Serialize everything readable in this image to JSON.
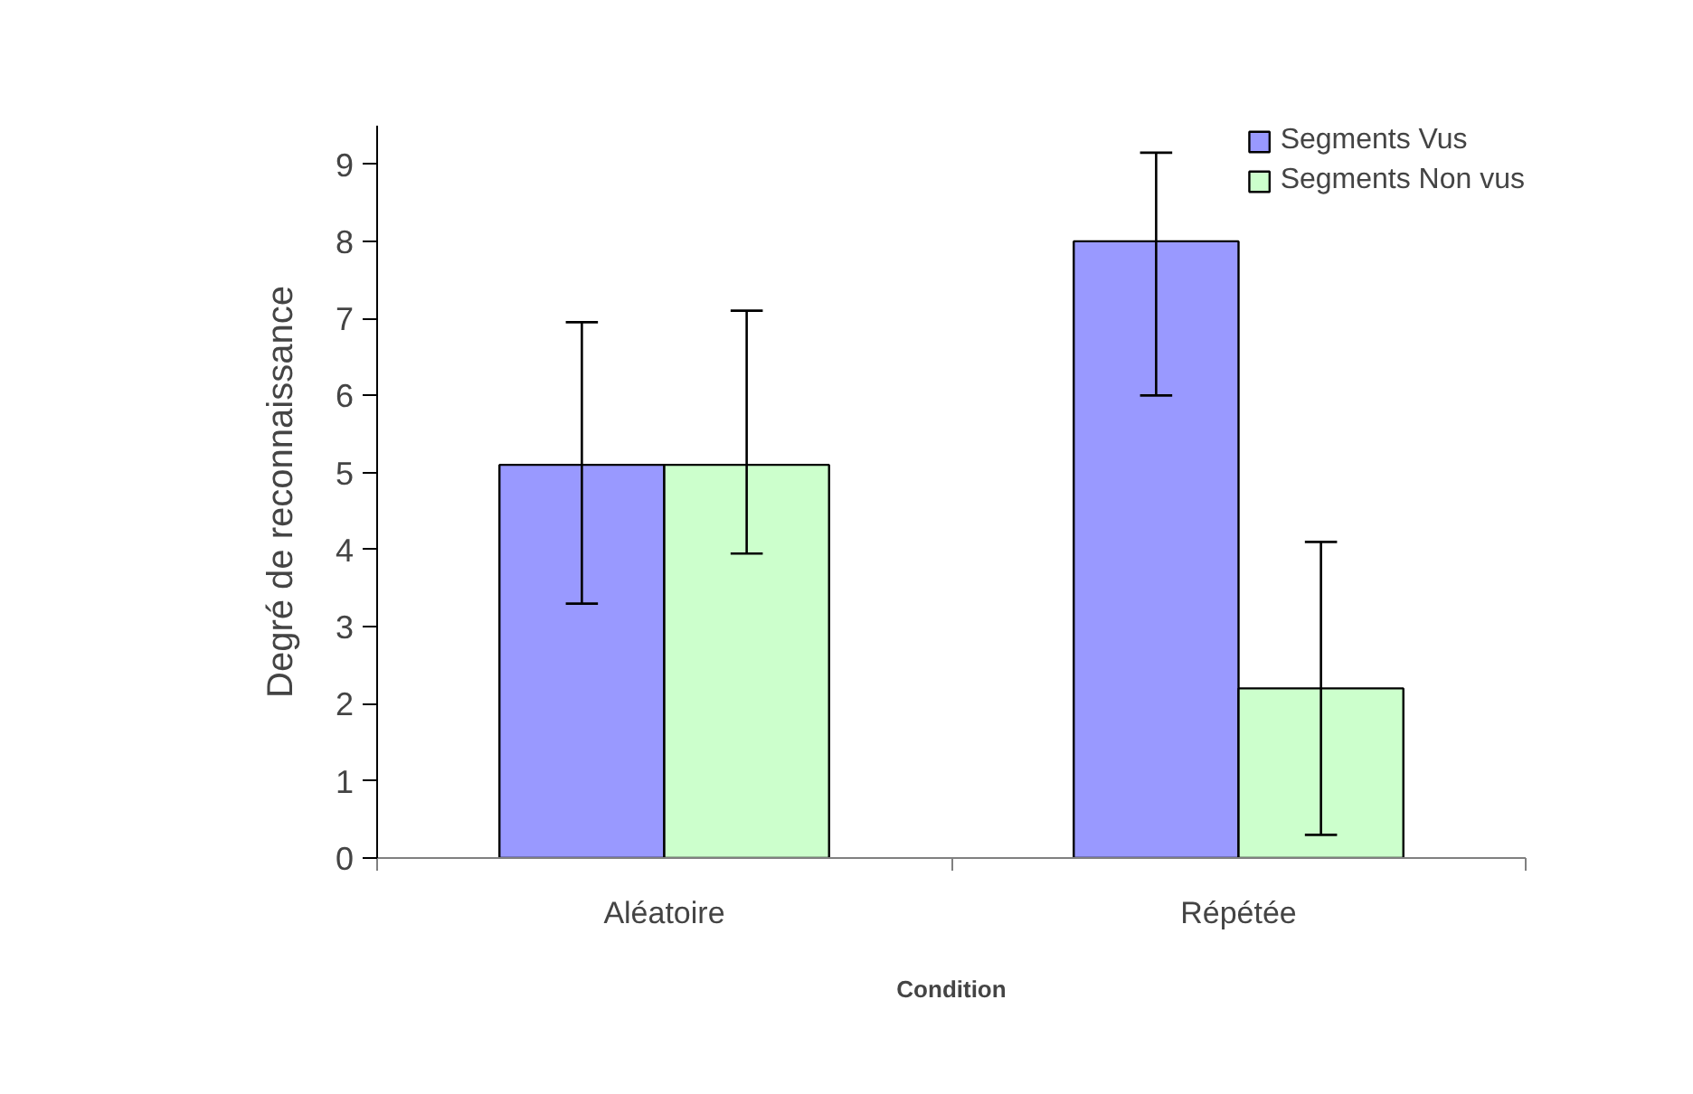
{
  "chart_data": {
    "type": "bar",
    "xlabel": "Condition",
    "ylabel": "Degré de reconnaissance",
    "categories": [
      "Aléatoire",
      "Répétée"
    ],
    "series": [
      {
        "name": "Segments Vus",
        "color": "#9999ff",
        "values": [
          5.1,
          8.0
        ],
        "errors": [
          [
            3.3,
            6.95
          ],
          [
            6.0,
            9.15
          ]
        ]
      },
      {
        "name": "Segments Non vus",
        "color": "#ccffcc",
        "values": [
          5.1,
          2.2
        ],
        "errors": [
          [
            3.95,
            7.1
          ],
          [
            0.3,
            4.1
          ]
        ]
      }
    ],
    "ylim": [
      0,
      9.5
    ],
    "yticks": [
      0,
      1,
      2,
      3,
      4,
      5,
      6,
      7,
      8,
      9
    ],
    "grid": false,
    "legend": "top right"
  }
}
